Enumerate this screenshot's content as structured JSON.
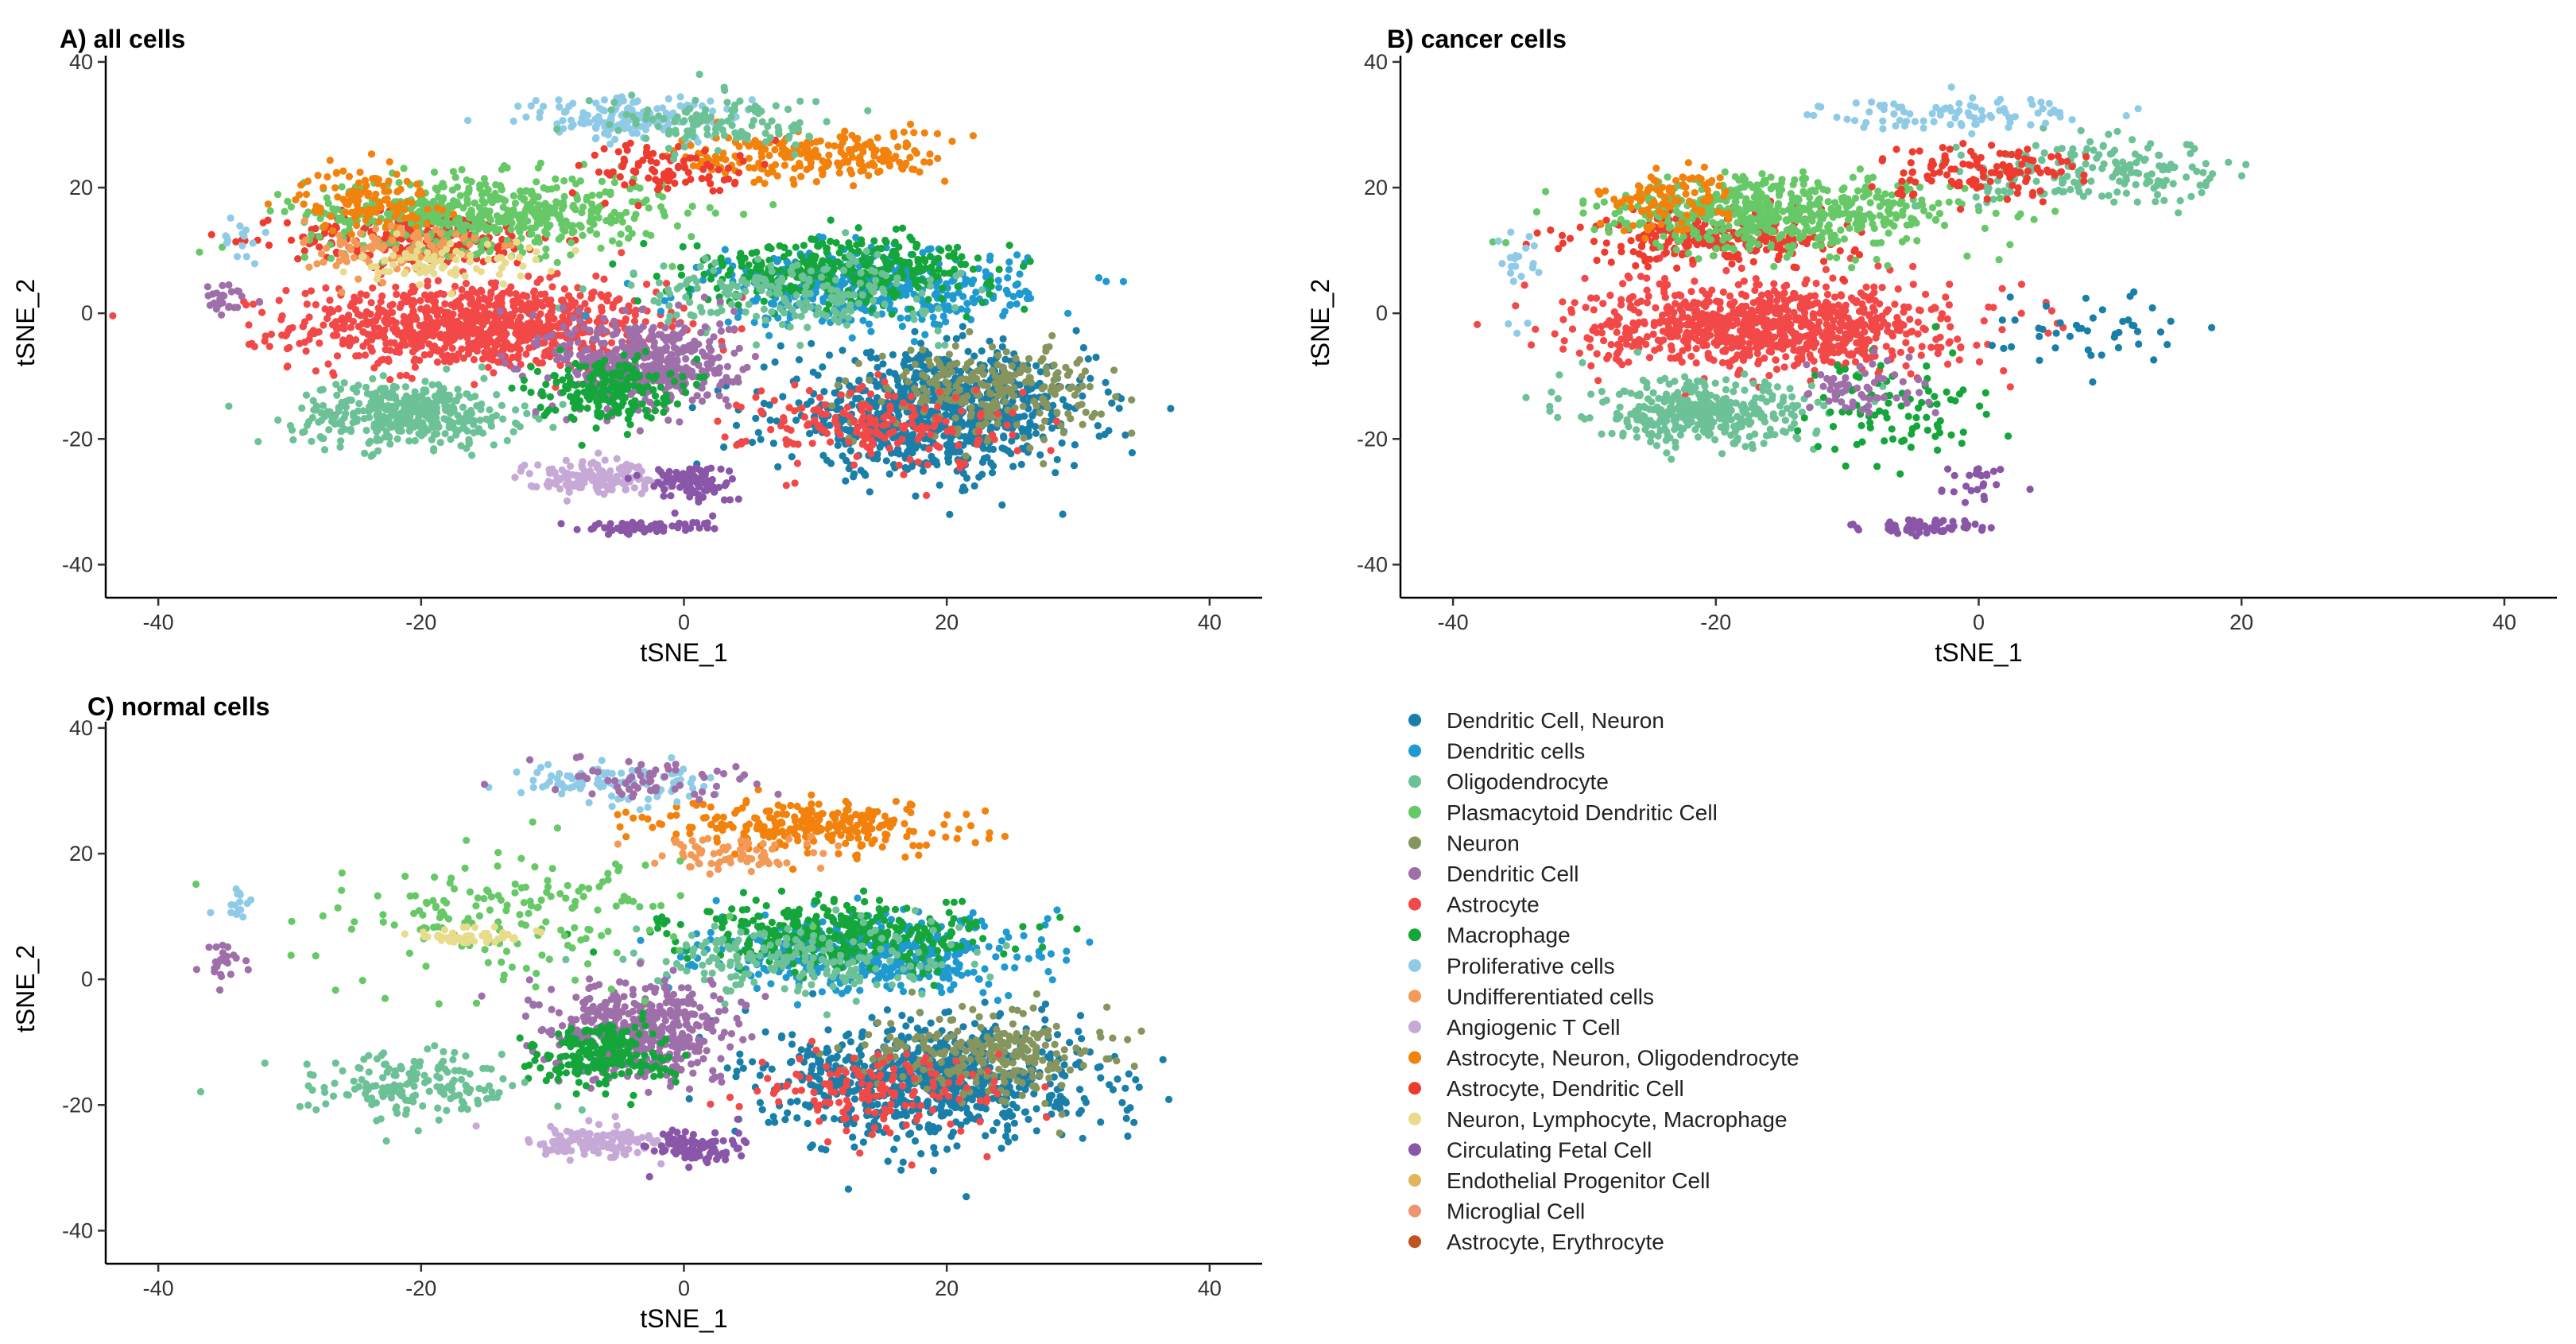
{
  "figure": {
    "legend_title": "",
    "legend": [
      {
        "label": "Dendritic Cell, Neuron",
        "color": "#1a7fa8"
      },
      {
        "label": "Dendritic cells",
        "color": "#1f9ad0"
      },
      {
        "label": "Oligodendrocyte",
        "color": "#6cc196"
      },
      {
        "label": "Plasmacytoid Dendritic Cell",
        "color": "#66c866"
      },
      {
        "label": "Neuron",
        "color": "#86955e"
      },
      {
        "label": "Dendritic Cell",
        "color": "#9e6fa8"
      },
      {
        "label": "Astrocyte",
        "color": "#f24848"
      },
      {
        "label": "Macrophage",
        "color": "#14a63a"
      },
      {
        "label": "Proliferative cells",
        "color": "#8fcbe6"
      },
      {
        "label": "Undifferentiated cells",
        "color": "#f49a58"
      },
      {
        "label": "Angiogenic T Cell",
        "color": "#c6a9d6"
      },
      {
        "label": "Astrocyte, Neuron, Oligodendrocyte",
        "color": "#f3820c"
      },
      {
        "label": "Astrocyte, Dendritic Cell",
        "color": "#ee3b2f"
      },
      {
        "label": "Neuron, Lymphocyte, Macrophage",
        "color": "#e8dc8c"
      },
      {
        "label": "Circulating Fetal Cell",
        "color": "#8a56a8"
      },
      {
        "label": "Endothelial Progenitor Cell",
        "color": "#e3b45e"
      },
      {
        "label": "Microglial Cell",
        "color": "#ed9470"
      },
      {
        "label": "Astrocyte, Erythrocyte",
        "color": "#c1531e"
      }
    ]
  },
  "chart_data": [
    {
      "type": "scatter",
      "title": "A) all cells",
      "xlabel": "tSNE_1",
      "ylabel": "tSNE_2",
      "xlim": [
        -44,
        44
      ],
      "ylim": [
        -44,
        41
      ],
      "xticks": [
        -40,
        -20,
        0,
        20,
        40
      ],
      "yticks": [
        -40,
        -20,
        0,
        20,
        40
      ],
      "clusters": [
        {
          "category": "Astrocyte",
          "cx": -16,
          "cy": -2,
          "sx": 8,
          "sy": 4,
          "n": 900
        },
        {
          "category": "Astrocyte, Dendritic Cell",
          "cx": -20,
          "cy": 12,
          "sx": 6,
          "sy": 2.5,
          "n": 250
        },
        {
          "category": "Plasmacytoid Dendritic Cell",
          "cx": -15,
          "cy": 16,
          "sx": 8,
          "sy": 3.5,
          "n": 550
        },
        {
          "category": "Astrocyte, Neuron, Oligodendrocyte",
          "cx": -24,
          "cy": 18,
          "sx": 3,
          "sy": 3,
          "n": 120
        },
        {
          "category": "Undifferentiated cells",
          "cx": -22,
          "cy": 10,
          "sx": 4,
          "sy": 3,
          "n": 100
        },
        {
          "category": "Neuron, Lymphocyte, Macrophage",
          "cx": -18,
          "cy": 8,
          "sx": 4,
          "sy": 2,
          "n": 80
        },
        {
          "category": "Oligodendrocyte",
          "cx": -21,
          "cy": -16,
          "sx": 5,
          "sy": 3,
          "n": 400
        },
        {
          "category": "Dendritic Cell, Neuron",
          "cx": 19,
          "cy": -16,
          "sx": 7,
          "sy": 5.5,
          "n": 800
        },
        {
          "category": "Neuron",
          "cx": 23,
          "cy": -12,
          "sx": 5,
          "sy": 4,
          "n": 250
        },
        {
          "category": "Astrocyte",
          "cx": 15,
          "cy": -18,
          "sx": 6,
          "sy": 4,
          "n": 180
        },
        {
          "category": "Dendritic cells",
          "cx": 14,
          "cy": 4,
          "sx": 7,
          "sy": 3.5,
          "n": 450
        },
        {
          "category": "Macrophage",
          "cx": 12,
          "cy": 7,
          "sx": 7,
          "sy": 3,
          "n": 350
        },
        {
          "category": "Oligodendrocyte",
          "cx": 8,
          "cy": 3,
          "sx": 7,
          "sy": 3.5,
          "n": 200
        },
        {
          "category": "Dendritic Cell",
          "cx": -3,
          "cy": -8,
          "sx": 4,
          "sy": 4.5,
          "n": 450
        },
        {
          "category": "Macrophage",
          "cx": -6,
          "cy": -12,
          "sx": 3,
          "sy": 3,
          "n": 200
        },
        {
          "category": "Angiogenic T Cell",
          "cx": -7,
          "cy": -26,
          "sx": 3,
          "sy": 1.5,
          "n": 150
        },
        {
          "category": "Circulating Fetal Cell",
          "cx": 0.5,
          "cy": -27,
          "sx": 2,
          "sy": 1.8,
          "n": 100
        },
        {
          "category": "Circulating Fetal Cell",
          "cx": -3,
          "cy": -34,
          "sx": 3,
          "sy": 0.5,
          "n": 70
        },
        {
          "category": "Proliferative cells",
          "cx": -4,
          "cy": 31,
          "sx": 5,
          "sy": 2,
          "n": 150
        },
        {
          "category": "Astrocyte, Neuron, Oligodendrocyte",
          "cx": 10,
          "cy": 25,
          "sx": 6,
          "sy": 2.5,
          "n": 220
        },
        {
          "category": "Astrocyte, Dendritic Cell",
          "cx": -1,
          "cy": 23,
          "sx": 4,
          "sy": 2.5,
          "n": 90
        },
        {
          "category": "Oligodendrocyte",
          "cx": 3,
          "cy": 30,
          "sx": 5,
          "sy": 2.5,
          "n": 120
        },
        {
          "category": "Dendritic Cell",
          "cx": -35,
          "cy": 2,
          "sx": 1,
          "sy": 2,
          "n": 25
        },
        {
          "category": "Proliferative cells",
          "cx": -34,
          "cy": 12,
          "sx": 0.8,
          "sy": 2,
          "n": 15
        }
      ]
    },
    {
      "type": "scatter",
      "title": "B) cancer cells",
      "xlabel": "tSNE_1",
      "ylabel": "tSNE_2",
      "xlim": [
        -44,
        44
      ],
      "ylim": [
        -44,
        41
      ],
      "xticks": [
        -40,
        -20,
        0,
        20,
        40
      ],
      "yticks": [
        -40,
        -20,
        0,
        20,
        40
      ],
      "clusters": [
        {
          "category": "Astrocyte",
          "cx": -16,
          "cy": -2,
          "sx": 8,
          "sy": 4,
          "n": 900
        },
        {
          "category": "Astrocyte, Dendritic Cell",
          "cx": -20,
          "cy": 12,
          "sx": 6,
          "sy": 2.5,
          "n": 250
        },
        {
          "category": "Plasmacytoid Dendritic Cell",
          "cx": -15,
          "cy": 16,
          "sx": 8,
          "sy": 3.5,
          "n": 550
        },
        {
          "category": "Astrocyte, Neuron, Oligodendrocyte",
          "cx": -24,
          "cy": 18,
          "sx": 3,
          "sy": 3,
          "n": 100
        },
        {
          "category": "Oligodendrocyte",
          "cx": -21,
          "cy": -16,
          "sx": 5,
          "sy": 3,
          "n": 380
        },
        {
          "category": "Oligodendrocyte",
          "cx": 10,
          "cy": 22,
          "sx": 6,
          "sy": 3,
          "n": 180
        },
        {
          "category": "Astrocyte, Dendritic Cell",
          "cx": 0,
          "cy": 23,
          "sx": 5,
          "sy": 2.5,
          "n": 120
        },
        {
          "category": "Proliferative cells",
          "cx": -2,
          "cy": 32,
          "sx": 6,
          "sy": 1.5,
          "n": 90
        },
        {
          "category": "Macrophage",
          "cx": -6,
          "cy": -16,
          "sx": 4,
          "sy": 5,
          "n": 90
        },
        {
          "category": "Dendritic Cell",
          "cx": -9,
          "cy": -12,
          "sx": 3,
          "sy": 3,
          "n": 60
        },
        {
          "category": "Circulating Fetal Cell",
          "cx": -4,
          "cy": -34,
          "sx": 3,
          "sy": 0.6,
          "n": 80
        },
        {
          "category": "Dendritic Cell, Neuron",
          "cx": 8,
          "cy": -3,
          "sx": 4,
          "sy": 4,
          "n": 45
        },
        {
          "category": "Circulating Fetal Cell",
          "cx": 0,
          "cy": -27,
          "sx": 2,
          "sy": 1.5,
          "n": 25
        },
        {
          "category": "Proliferative cells",
          "cx": -35,
          "cy": 5,
          "sx": 1.2,
          "sy": 4,
          "n": 22
        }
      ]
    },
    {
      "type": "scatter",
      "title": "C) normal cells",
      "xlabel": "tSNE_1",
      "ylabel": "tSNE_2",
      "xlim": [
        -44,
        44
      ],
      "ylim": [
        -44,
        41
      ],
      "xticks": [
        -40,
        -20,
        0,
        20,
        40
      ],
      "yticks": [
        -40,
        -20,
        0,
        20,
        40
      ],
      "clusters": [
        {
          "category": "Dendritic Cell, Neuron",
          "cx": 19,
          "cy": -16,
          "sx": 7,
          "sy": 5.5,
          "n": 800
        },
        {
          "category": "Neuron",
          "cx": 23,
          "cy": -12,
          "sx": 5,
          "sy": 4,
          "n": 250
        },
        {
          "category": "Astrocyte",
          "cx": 15,
          "cy": -18,
          "sx": 6,
          "sy": 4,
          "n": 150
        },
        {
          "category": "Dendritic cells",
          "cx": 14,
          "cy": 4,
          "sx": 7,
          "sy": 3.5,
          "n": 450
        },
        {
          "category": "Macrophage",
          "cx": 12,
          "cy": 7,
          "sx": 7,
          "sy": 3,
          "n": 350
        },
        {
          "category": "Oligodendrocyte",
          "cx": 8,
          "cy": 3,
          "sx": 7,
          "sy": 3.5,
          "n": 200
        },
        {
          "category": "Dendritic Cell",
          "cx": -3,
          "cy": -8,
          "sx": 4,
          "sy": 4.5,
          "n": 450
        },
        {
          "category": "Macrophage",
          "cx": -6,
          "cy": -12,
          "sx": 3,
          "sy": 3,
          "n": 200
        },
        {
          "category": "Angiogenic T Cell",
          "cx": -7,
          "cy": -26,
          "sx": 3,
          "sy": 1.5,
          "n": 150
        },
        {
          "category": "Circulating Fetal Cell",
          "cx": 0.5,
          "cy": -27,
          "sx": 2,
          "sy": 1.8,
          "n": 100
        },
        {
          "category": "Oligodendrocyte",
          "cx": -21,
          "cy": -17,
          "sx": 5,
          "sy": 3,
          "n": 170
        },
        {
          "category": "Astrocyte, Neuron, Oligodendrocyte",
          "cx": 10,
          "cy": 24,
          "sx": 7,
          "sy": 2.5,
          "n": 260
        },
        {
          "category": "Undifferentiated cells",
          "cx": 4,
          "cy": 20,
          "sx": 4,
          "sy": 2,
          "n": 70
        },
        {
          "category": "Plasmacytoid Dendritic Cell",
          "cx": -13,
          "cy": 10,
          "sx": 8,
          "sy": 6,
          "n": 170
        },
        {
          "category": "Neuron, Lymphocyte, Macrophage",
          "cx": -16,
          "cy": 7,
          "sx": 2.5,
          "sy": 1,
          "n": 50
        },
        {
          "category": "Proliferative cells",
          "cx": -5,
          "cy": 31,
          "sx": 5,
          "sy": 2,
          "n": 100
        },
        {
          "category": "Dendritic Cell",
          "cx": -3,
          "cy": 32,
          "sx": 5,
          "sy": 2,
          "n": 60
        },
        {
          "category": "Dendritic Cell",
          "cx": -35,
          "cy": 2,
          "sx": 1,
          "sy": 2,
          "n": 25
        },
        {
          "category": "Proliferative cells",
          "cx": -34,
          "cy": 12,
          "sx": 0.8,
          "sy": 2,
          "n": 15
        }
      ]
    }
  ]
}
